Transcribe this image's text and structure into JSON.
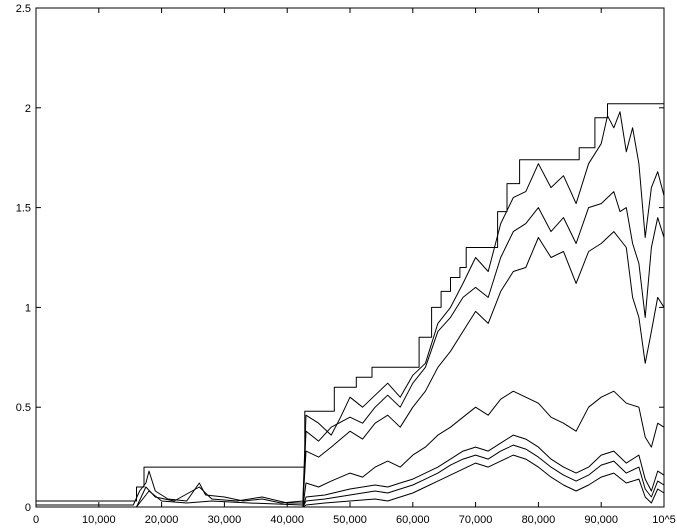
{
  "chart_data": {
    "type": "line",
    "title": "",
    "xlabel": "",
    "ylabel": "",
    "xlim": [
      0,
      100000
    ],
    "ylim": [
      0,
      2.5
    ],
    "grid": false,
    "legend": "none",
    "line_color": "#000000",
    "x_ticks": [
      {
        "value": 0,
        "label": "0"
      },
      {
        "value": 10000,
        "label": "10,000"
      },
      {
        "value": 20000,
        "label": "20,000"
      },
      {
        "value": 30000,
        "label": "30,000"
      },
      {
        "value": 40000,
        "label": "40,000"
      },
      {
        "value": 50000,
        "label": "50,000"
      },
      {
        "value": 60000,
        "label": "60,000"
      },
      {
        "value": 70000,
        "label": "70,000"
      },
      {
        "value": 80000,
        "label": "80,000"
      },
      {
        "value": 90000,
        "label": "90,000"
      },
      {
        "value": 100000,
        "label": "10^5"
      }
    ],
    "y_ticks": [
      {
        "value": 0,
        "label": "0"
      },
      {
        "value": 0.5,
        "label": "0.5"
      },
      {
        "value": 1,
        "label": "1"
      },
      {
        "value": 1.5,
        "label": "1.5"
      },
      {
        "value": 2,
        "label": "2"
      },
      {
        "value": 2.5,
        "label": "2.5"
      }
    ],
    "series": [
      {
        "x": [
          0,
          16000,
          16000,
          17200,
          17200,
          18000,
          18000,
          42800,
          42800,
          47500,
          47500,
          51000,
          51000,
          53500,
          53500,
          56000,
          56000,
          61000,
          61000,
          63000,
          63000,
          64500,
          64500,
          66000,
          66000,
          67500,
          67500,
          68500,
          68500,
          70000,
          70000,
          73500,
          73500,
          75000,
          75000,
          77000,
          77000,
          86500,
          86500,
          89000,
          89000,
          91000,
          91000,
          100000
        ],
        "y": [
          0.03,
          0.03,
          0.1,
          0.1,
          0.2,
          0.2,
          0.2,
          0.2,
          0.48,
          0.48,
          0.6,
          0.6,
          0.65,
          0.65,
          0.7,
          0.7,
          0.7,
          0.7,
          0.85,
          0.85,
          1.0,
          1.0,
          1.08,
          1.08,
          1.15,
          1.15,
          1.2,
          1.2,
          1.3,
          1.3,
          1.3,
          1.3,
          1.48,
          1.48,
          1.62,
          1.62,
          1.74,
          1.74,
          1.8,
          1.8,
          1.95,
          1.95,
          2.02,
          2.02
        ]
      },
      {
        "x": [
          0,
          15500,
          16500,
          17500,
          18000,
          19000,
          21000,
          24000,
          26000,
          27000,
          30000,
          33000,
          36000,
          39000,
          42500,
          43000,
          45000,
          47000,
          48500,
          50000,
          52000,
          54000,
          56000,
          58000,
          60000,
          62000,
          64000,
          66000,
          68000,
          70000,
          72000,
          74000,
          76000,
          78000,
          80000,
          82000,
          84000,
          86000,
          88000,
          90000,
          91000,
          92000,
          93000,
          94000,
          95000,
          96000,
          97000,
          98000,
          99000,
          100000
        ],
        "y": [
          0.01,
          0.01,
          0.08,
          0.12,
          0.18,
          0.08,
          0.04,
          0.03,
          0.12,
          0.06,
          0.05,
          0.03,
          0.04,
          0.02,
          0.03,
          0.46,
          0.42,
          0.36,
          0.45,
          0.55,
          0.5,
          0.56,
          0.62,
          0.55,
          0.66,
          0.72,
          0.92,
          1.0,
          1.12,
          1.25,
          1.18,
          1.42,
          1.55,
          1.58,
          1.72,
          1.6,
          1.66,
          1.52,
          1.72,
          1.82,
          1.96,
          1.9,
          1.98,
          1.78,
          1.9,
          1.72,
          1.35,
          1.6,
          1.68,
          1.56
        ]
      },
      {
        "x": [
          0,
          16000,
          17500,
          19000,
          22000,
          26000,
          28000,
          32000,
          36000,
          40000,
          42500,
          43000,
          45000,
          47000,
          50000,
          52000,
          54000,
          56000,
          58000,
          60000,
          62000,
          64000,
          66000,
          68000,
          70000,
          72000,
          74000,
          76000,
          78000,
          80000,
          82000,
          84000,
          86000,
          88000,
          90000,
          92000,
          93000,
          94000,
          95000,
          96000,
          97000,
          98000,
          99000,
          100000
        ],
        "y": [
          0.0,
          0.0,
          0.1,
          0.05,
          0.03,
          0.1,
          0.04,
          0.03,
          0.05,
          0.02,
          0.02,
          0.38,
          0.33,
          0.4,
          0.45,
          0.42,
          0.5,
          0.56,
          0.5,
          0.62,
          0.7,
          0.88,
          0.95,
          1.05,
          1.1,
          1.05,
          1.25,
          1.38,
          1.42,
          1.5,
          1.38,
          1.45,
          1.32,
          1.5,
          1.52,
          1.58,
          1.48,
          1.5,
          1.32,
          1.22,
          0.95,
          1.3,
          1.45,
          1.35
        ]
      },
      {
        "x": [
          0,
          16000,
          18000,
          20000,
          24000,
          28000,
          34000,
          42500,
          43000,
          45000,
          47000,
          50000,
          52000,
          54000,
          56000,
          58000,
          60000,
          62000,
          64000,
          66000,
          68000,
          70000,
          72000,
          74000,
          76000,
          78000,
          80000,
          82000,
          84000,
          86000,
          88000,
          90000,
          92000,
          94000,
          95000,
          96000,
          97000,
          98000,
          99000,
          100000
        ],
        "y": [
          0.0,
          0.0,
          0.08,
          0.03,
          0.02,
          0.03,
          0.02,
          0.01,
          0.28,
          0.25,
          0.3,
          0.38,
          0.34,
          0.42,
          0.46,
          0.4,
          0.5,
          0.58,
          0.7,
          0.78,
          0.88,
          0.98,
          0.92,
          1.08,
          1.18,
          1.2,
          1.35,
          1.25,
          1.28,
          1.12,
          1.28,
          1.32,
          1.38,
          1.3,
          1.05,
          0.95,
          0.72,
          0.88,
          1.05,
          1.0
        ]
      },
      {
        "x": [
          0,
          42500,
          43000,
          45000,
          47000,
          50000,
          52000,
          54000,
          56000,
          58000,
          60000,
          62000,
          64000,
          66000,
          68000,
          70000,
          72000,
          74000,
          76000,
          78000,
          80000,
          82000,
          84000,
          86000,
          88000,
          90000,
          92000,
          94000,
          96000,
          97000,
          98000,
          99000,
          100000
        ],
        "y": [
          0.0,
          0.0,
          0.12,
          0.1,
          0.13,
          0.17,
          0.15,
          0.2,
          0.23,
          0.2,
          0.26,
          0.3,
          0.36,
          0.4,
          0.45,
          0.5,
          0.46,
          0.54,
          0.58,
          0.55,
          0.52,
          0.45,
          0.42,
          0.38,
          0.5,
          0.55,
          0.58,
          0.52,
          0.5,
          0.35,
          0.3,
          0.42,
          0.4
        ]
      },
      {
        "x": [
          0,
          42500,
          43000,
          46000,
          50000,
          54000,
          56000,
          58000,
          60000,
          62000,
          64000,
          66000,
          68000,
          70000,
          72000,
          74000,
          76000,
          78000,
          80000,
          82000,
          84000,
          86000,
          88000,
          90000,
          92000,
          94000,
          96000,
          97000,
          98000,
          99000,
          100000
        ],
        "y": [
          0.0,
          0.0,
          0.05,
          0.06,
          0.09,
          0.11,
          0.1,
          0.12,
          0.14,
          0.17,
          0.2,
          0.24,
          0.28,
          0.3,
          0.28,
          0.32,
          0.36,
          0.34,
          0.3,
          0.24,
          0.2,
          0.17,
          0.2,
          0.26,
          0.28,
          0.22,
          0.26,
          0.14,
          0.08,
          0.18,
          0.16
        ]
      },
      {
        "x": [
          0,
          42500,
          43000,
          46000,
          50000,
          54000,
          56000,
          58000,
          60000,
          62000,
          64000,
          66000,
          68000,
          70000,
          72000,
          74000,
          76000,
          78000,
          80000,
          82000,
          84000,
          86000,
          88000,
          90000,
          92000,
          94000,
          96000,
          97000,
          98000,
          99000,
          100000
        ],
        "y": [
          0.0,
          0.0,
          0.03,
          0.04,
          0.06,
          0.08,
          0.07,
          0.09,
          0.11,
          0.14,
          0.17,
          0.21,
          0.24,
          0.26,
          0.24,
          0.28,
          0.31,
          0.29,
          0.25,
          0.2,
          0.16,
          0.13,
          0.16,
          0.21,
          0.23,
          0.17,
          0.2,
          0.09,
          0.05,
          0.13,
          0.11
        ]
      },
      {
        "x": [
          0,
          42500,
          43000,
          46000,
          50000,
          54000,
          56000,
          58000,
          60000,
          62000,
          64000,
          66000,
          68000,
          70000,
          72000,
          74000,
          76000,
          78000,
          80000,
          82000,
          84000,
          86000,
          88000,
          90000,
          92000,
          94000,
          96000,
          97000,
          98000,
          99000,
          100000
        ],
        "y": [
          0.0,
          0.0,
          0.01,
          0.02,
          0.03,
          0.04,
          0.03,
          0.05,
          0.07,
          0.1,
          0.13,
          0.16,
          0.19,
          0.22,
          0.2,
          0.23,
          0.26,
          0.24,
          0.2,
          0.15,
          0.11,
          0.08,
          0.11,
          0.15,
          0.17,
          0.12,
          0.14,
          0.05,
          0.02,
          0.09,
          0.07
        ]
      }
    ]
  }
}
